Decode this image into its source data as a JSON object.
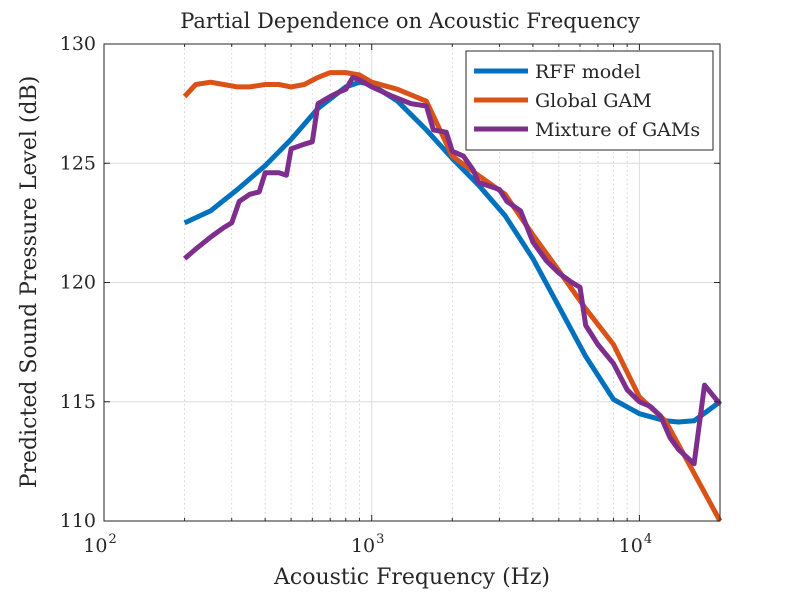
{
  "chart_data": {
    "type": "line",
    "title": "Partial Dependence on Acoustic Frequency",
    "xlabel": "Acoustic Frequency (Hz)",
    "ylabel": "Predicted Sound Pressure Level (dB)",
    "xscale": "log",
    "xlim": [
      100,
      20000
    ],
    "ylim": [
      110,
      130
    ],
    "x_ticks": [
      {
        "value": 100,
        "base": "10",
        "exp": "2"
      },
      {
        "value": 1000,
        "base": "10",
        "exp": "3"
      },
      {
        "value": 10000,
        "base": "10",
        "exp": "4"
      }
    ],
    "y_ticks": [
      110,
      115,
      120,
      125,
      130
    ],
    "grid": true,
    "legend_position": "top-right",
    "series": [
      {
        "name": "RFF model",
        "color": "#0072BD",
        "x": [
          200,
          250,
          315,
          400,
          500,
          630,
          800,
          900,
          1000,
          1250,
          1600,
          2000,
          2500,
          3150,
          4000,
          5000,
          6300,
          8000,
          10000,
          12500,
          14000,
          16000,
          20000
        ],
        "y": [
          122.5,
          123.0,
          123.9,
          124.9,
          126.0,
          127.3,
          128.2,
          128.4,
          128.3,
          127.6,
          126.4,
          125.2,
          124.1,
          122.8,
          121.0,
          119.0,
          116.9,
          115.1,
          114.5,
          114.2,
          114.15,
          114.2,
          115.0
        ]
      },
      {
        "name": "Global GAM",
        "color": "#D95319",
        "x": [
          200,
          220,
          250,
          280,
          315,
          350,
          400,
          450,
          500,
          560,
          630,
          700,
          800,
          900,
          1000,
          1250,
          1600,
          2000,
          2500,
          3150,
          4000,
          5000,
          6300,
          8000,
          10000,
          12500,
          16000,
          20000
        ],
        "y": [
          127.8,
          128.3,
          128.4,
          128.3,
          128.2,
          128.2,
          128.3,
          128.3,
          128.2,
          128.3,
          128.6,
          128.8,
          128.8,
          128.7,
          128.4,
          128.1,
          127.6,
          125.3,
          124.5,
          123.7,
          122.0,
          120.5,
          118.9,
          117.4,
          115.2,
          114.2,
          112.0,
          110.0
        ]
      },
      {
        "name": "Mixture of GAMs",
        "color": "#7E2F8E",
        "x": [
          200,
          220,
          250,
          280,
          300,
          320,
          350,
          380,
          400,
          450,
          480,
          500,
          560,
          600,
          630,
          700,
          760,
          800,
          850,
          900,
          1000,
          1200,
          1400,
          1600,
          1700,
          1900,
          2000,
          2200,
          2400,
          2500,
          3000,
          3200,
          3600,
          4000,
          4500,
          5000,
          5600,
          6000,
          6300,
          7000,
          8000,
          9000,
          10000,
          11000,
          12000,
          13000,
          14000,
          16000,
          17500,
          20000
        ],
        "y": [
          121.0,
          121.4,
          121.9,
          122.3,
          122.5,
          123.4,
          123.7,
          123.8,
          124.6,
          124.6,
          124.5,
          125.6,
          125.8,
          125.9,
          127.5,
          127.8,
          128.0,
          128.1,
          128.6,
          128.5,
          128.2,
          127.8,
          127.5,
          127.4,
          126.4,
          126.3,
          125.5,
          125.3,
          124.7,
          124.2,
          123.9,
          123.4,
          123.0,
          121.7,
          120.9,
          120.4,
          120.0,
          119.8,
          118.2,
          117.4,
          116.6,
          115.5,
          115.0,
          114.8,
          114.4,
          113.5,
          113.0,
          112.4,
          115.7,
          114.9
        ]
      }
    ]
  }
}
